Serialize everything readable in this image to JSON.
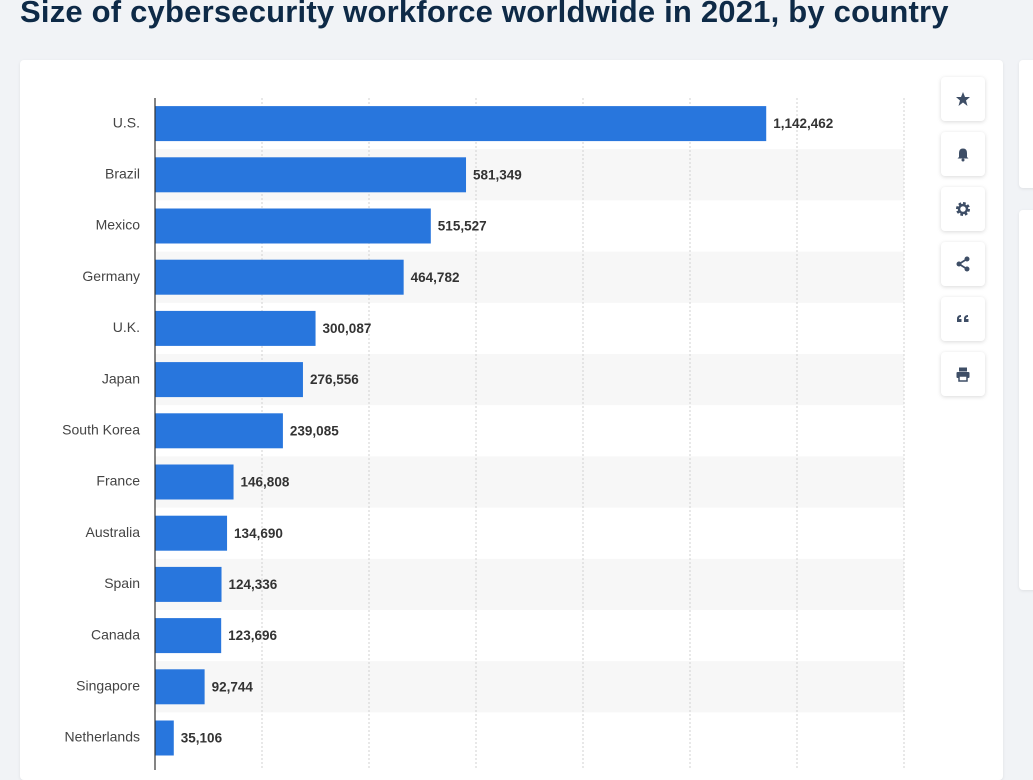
{
  "chart_data": {
    "type": "bar",
    "orientation": "horizontal",
    "title": "Size of cybersecurity workforce worldwide in 2021, by country",
    "categories": [
      "U.S.",
      "Brazil",
      "Mexico",
      "Germany",
      "U.K.",
      "Japan",
      "South Korea",
      "France",
      "Australia",
      "Spain",
      "Canada",
      "Singapore",
      "Netherlands"
    ],
    "values": [
      1142462,
      581349,
      515527,
      464782,
      300087,
      276556,
      239085,
      146808,
      134690,
      124336,
      123696,
      92744,
      35106
    ],
    "value_labels": [
      "1,142,462",
      "581,349",
      "515,527",
      "464,782",
      "300,087",
      "276,556",
      "239,085",
      "146,808",
      "134,690",
      "124,336",
      "123,696",
      "92,744",
      "35,106"
    ],
    "color": "#2876dd",
    "xlim": [
      0,
      1400000
    ],
    "xticks": [
      0,
      200000,
      400000,
      600000,
      800000,
      1000000,
      1200000,
      1400000
    ],
    "grid": true
  }
}
